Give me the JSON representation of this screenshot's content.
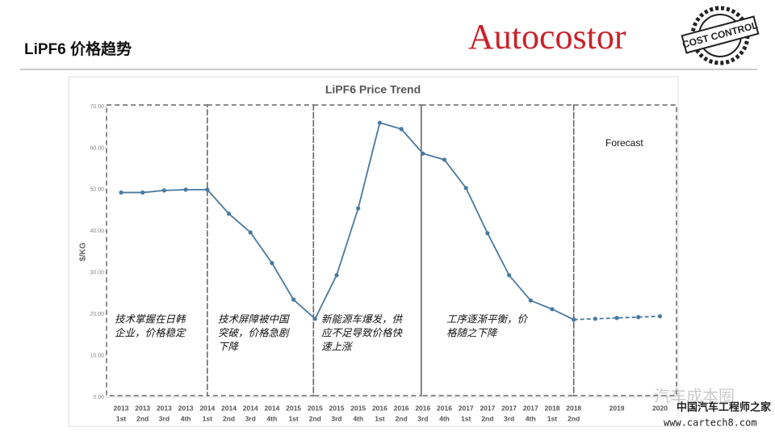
{
  "header": {
    "title": "LiPF6 价格趋势",
    "logo": "Autocostor",
    "stamp": "COST CONTROL"
  },
  "watermark": {
    "name": "汽车成本圈",
    "site": "中国汽车工程师之家",
    "url": "www.cartech8.com"
  },
  "chart_data": {
    "type": "line",
    "title": "LiPF6 Price Trend",
    "y_label": "$/KG",
    "categories": [
      [
        "2013",
        "1st"
      ],
      [
        "2013",
        "2nd"
      ],
      [
        "2013",
        "3rd"
      ],
      [
        "2013",
        "4th"
      ],
      [
        "2014",
        "1st"
      ],
      [
        "2014",
        "2nd"
      ],
      [
        "2014",
        "3rd"
      ],
      [
        "2014",
        "4th"
      ],
      [
        "2015",
        "1st"
      ],
      [
        "2015",
        "2nd"
      ],
      [
        "2015",
        "3rd"
      ],
      [
        "2015",
        "4th"
      ],
      [
        "2016",
        "1st"
      ],
      [
        "2016",
        "2nd"
      ],
      [
        "2016",
        "3rd"
      ],
      [
        "2016",
        "4th"
      ],
      [
        "2017",
        "1st"
      ],
      [
        "2017",
        "2nd"
      ],
      [
        "2017",
        "3rd"
      ],
      [
        "2017",
        "4th"
      ],
      [
        "2018",
        "1st"
      ],
      [
        "2018",
        "2nd"
      ],
      null,
      [
        "2019"
      ],
      null,
      [
        "2020"
      ]
    ],
    "series": [
      {
        "color": "#4a79a0",
        "style": "solid",
        "values": [
          49.3,
          49.3,
          49.8,
          50.0,
          50.0,
          44.2,
          39.7,
          32.3,
          23.5,
          18.9,
          29.4,
          45.5,
          66.1,
          64.6,
          58.7,
          57.2,
          50.4,
          39.5,
          29.4,
          23.3,
          21.2,
          18.7,
          null,
          null,
          null,
          null
        ]
      },
      {
        "color": "#4a79a0",
        "style": "dashed",
        "values": [
          null,
          null,
          null,
          null,
          null,
          null,
          null,
          null,
          null,
          null,
          null,
          null,
          null,
          null,
          null,
          null,
          null,
          null,
          null,
          null,
          null,
          18.7,
          18.9,
          19.1,
          19.3,
          19.5
        ]
      }
    ],
    "ylim": [
      0,
      70
    ],
    "yticks": [
      {
        "value": 0,
        "label": "0.00"
      },
      {
        "value": 10,
        "label": "10.00"
      },
      {
        "value": 20,
        "label": "20.00"
      },
      {
        "value": 30,
        "label": "30.00"
      },
      {
        "value": 40,
        "label": "40.00"
      },
      {
        "value": 50,
        "label": "50.00"
      },
      {
        "value": 60,
        "label": "60.00"
      },
      {
        "value": 70,
        "label": "70.00"
      }
    ],
    "annotations": [
      {
        "lines": [
          "技术掌握在日韩",
          "企业，价格稳定"
        ]
      },
      {
        "lines": [
          "技术屏障被中国",
          "突破，价格急剧",
          "下降"
        ]
      },
      {
        "lines": [
          "新能源车爆发，供",
          "应不足导致价格快",
          "速上涨"
        ]
      },
      {
        "lines": [
          "工序逐渐平衡，价",
          "格随之下降"
        ]
      },
      {
        "lines": [
          "Forecast"
        ]
      }
    ]
  }
}
